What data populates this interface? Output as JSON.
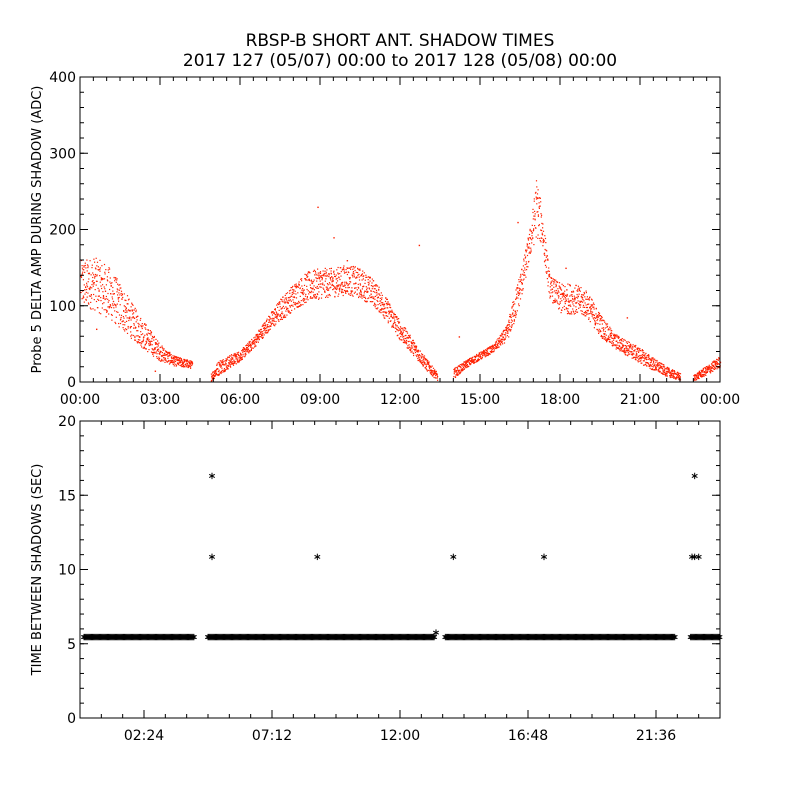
{
  "title_line1": "RBSP-B SHORT ANT. SHADOW TIMES",
  "title_line2": "2017 127 (05/07) 00:00 to 2017 128 (05/08) 00:00",
  "colors": {
    "scatter": "#ff2000",
    "axis": "#000000",
    "marker": "#000000"
  },
  "chart_data": [
    {
      "type": "scatter",
      "title": "",
      "xlabel": "",
      "ylabel": "Probe 5 DELTA AMP DURING SHADOW (ADC)",
      "xlim": [
        0,
        24
      ],
      "ylim": [
        0,
        400
      ],
      "xunit": "hours",
      "xticks": [
        0,
        3,
        6,
        9,
        12,
        15,
        18,
        21,
        24
      ],
      "xtick_labels": [
        "00:00",
        "03:00",
        "06:00",
        "09:00",
        "12:00",
        "15:00",
        "18:00",
        "21:00",
        "00:00"
      ],
      "yticks": [
        0,
        100,
        200,
        300,
        400
      ],
      "ytick_labels": [
        "0",
        "100",
        "200",
        "300",
        "400"
      ],
      "band": {
        "x": [
          0.0,
          0.5,
          1.0,
          1.5,
          2.0,
          2.5,
          3.0,
          3.5,
          4.2,
          4.9,
          5.2,
          6.0,
          6.5,
          7.0,
          7.5,
          8.0,
          8.5,
          9.0,
          9.5,
          10.0,
          10.5,
          11.0,
          11.5,
          12.0,
          12.5,
          13.0,
          13.4,
          14.0,
          14.5,
          15.0,
          15.5,
          16.0,
          16.3,
          16.6,
          16.9,
          17.1,
          17.3,
          17.6,
          18.0,
          18.5,
          19.0,
          19.5,
          20.0,
          20.5,
          21.0,
          21.5,
          22.0,
          22.5,
          23.0,
          23.5,
          24.0
        ],
        "low": [
          100,
          95,
          85,
          70,
          55,
          40,
          28,
          22,
          18,
          2,
          10,
          28,
          45,
          65,
          80,
          95,
          105,
          110,
          112,
          115,
          110,
          100,
          80,
          55,
          35,
          15,
          2,
          5,
          20,
          30,
          40,
          55,
          80,
          120,
          170,
          190,
          180,
          110,
          90,
          90,
          85,
          60,
          45,
          35,
          25,
          15,
          8,
          2,
          2,
          10,
          20
        ],
        "high": [
          160,
          165,
          155,
          130,
          100,
          75,
          50,
          35,
          28,
          12,
          30,
          42,
          60,
          85,
          110,
          130,
          145,
          150,
          150,
          155,
          150,
          135,
          110,
          80,
          55,
          30,
          12,
          18,
          30,
          40,
          50,
          75,
          120,
          160,
          210,
          270,
          230,
          140,
          130,
          130,
          120,
          90,
          65,
          55,
          45,
          32,
          20,
          12,
          10,
          22,
          35
        ]
      },
      "outliers": [
        [
          0.6,
          70
        ],
        [
          2.8,
          15
        ],
        [
          8.9,
          230
        ],
        [
          9.5,
          190
        ],
        [
          10.0,
          160
        ],
        [
          10.5,
          120
        ],
        [
          12.7,
          180
        ],
        [
          14.2,
          60
        ],
        [
          16.4,
          210
        ],
        [
          18.2,
          150
        ],
        [
          20.5,
          85
        ]
      ]
    },
    {
      "type": "scatter",
      "title": "",
      "xlabel": "",
      "ylabel": "TIME BETWEEN SHADOWS (SEC)",
      "xlim": [
        0,
        24
      ],
      "ylim": [
        0,
        20
      ],
      "xunit": "hours",
      "xticks": [
        2.4,
        7.2,
        12.0,
        16.8,
        21.6
      ],
      "xtick_labels": [
        "02:24",
        "07:12",
        "12:00",
        "16:48",
        "21:36"
      ],
      "yticks": [
        0,
        5,
        10,
        15,
        20
      ],
      "ytick_labels": [
        "0",
        "5",
        "10",
        "15",
        "20"
      ],
      "baseline": {
        "y": 5.45,
        "segments": [
          [
            0.15,
            4.3
          ],
          [
            4.8,
            13.3
          ],
          [
            13.7,
            22.3
          ],
          [
            22.9,
            24.0
          ]
        ]
      },
      "points": [
        {
          "x": 4.95,
          "y": 16.3
        },
        {
          "x": 4.95,
          "y": 10.85
        },
        {
          "x": 8.9,
          "y": 10.85
        },
        {
          "x": 13.35,
          "y": 5.75
        },
        {
          "x": 14.0,
          "y": 10.85
        },
        {
          "x": 17.4,
          "y": 10.85
        },
        {
          "x": 23.05,
          "y": 16.3
        },
        {
          "x": 22.95,
          "y": 10.85
        },
        {
          "x": 23.05,
          "y": 10.85
        },
        {
          "x": 23.2,
          "y": 10.85
        }
      ]
    }
  ]
}
